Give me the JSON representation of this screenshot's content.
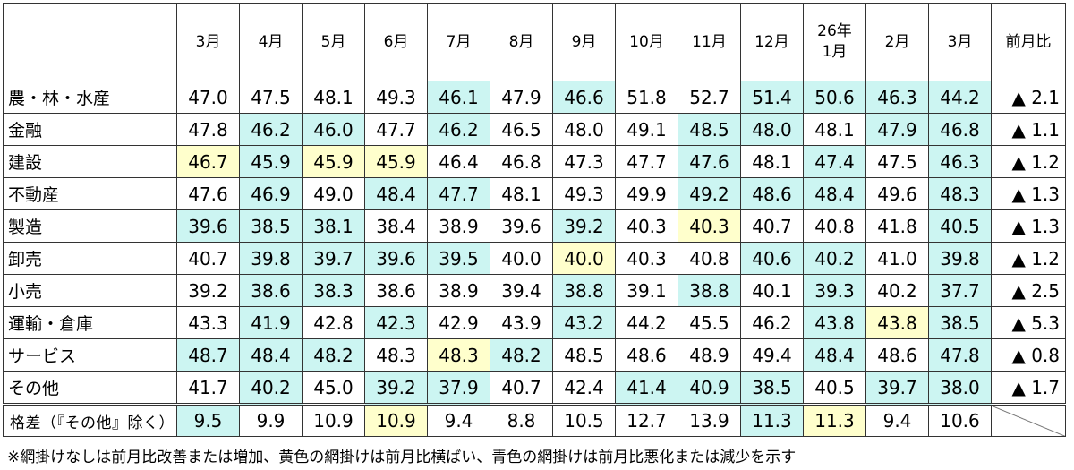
{
  "colors": {
    "blue": "#ccf5f2",
    "yellow": "#ffffcc"
  },
  "columns": [
    "3月",
    "4月",
    "5月",
    "6月",
    "7月",
    "8月",
    "9月",
    "10月",
    "11月",
    "12月",
    "26年\n1月",
    "2月",
    "3月",
    "前月比"
  ],
  "rows": [
    {
      "label": "農・林・水産",
      "values": [
        "47.0",
        "47.5",
        "48.1",
        "49.3",
        "46.1",
        "47.9",
        "46.6",
        "51.8",
        "52.7",
        "51.4",
        "50.6",
        "46.3",
        "44.2"
      ],
      "shade": [
        "",
        "",
        "",
        "",
        "b",
        "",
        "b",
        "",
        "",
        "b",
        "b",
        "b",
        "b"
      ],
      "change": "▲ 2.1"
    },
    {
      "label": "金融",
      "values": [
        "47.8",
        "46.2",
        "46.0",
        "47.7",
        "46.2",
        "46.5",
        "48.0",
        "49.1",
        "48.5",
        "48.0",
        "48.1",
        "47.9",
        "46.8"
      ],
      "shade": [
        "",
        "b",
        "b",
        "",
        "b",
        "",
        "",
        "",
        "b",
        "b",
        "",
        "b",
        "b"
      ],
      "change": "▲ 1.1"
    },
    {
      "label": "建設",
      "values": [
        "46.7",
        "45.9",
        "45.9",
        "45.9",
        "46.4",
        "46.8",
        "47.3",
        "47.7",
        "47.6",
        "48.1",
        "47.4",
        "47.5",
        "46.3"
      ],
      "shade": [
        "y",
        "b",
        "y",
        "y",
        "",
        "",
        "",
        "",
        "b",
        "",
        "b",
        "",
        "b"
      ],
      "change": "▲ 1.2"
    },
    {
      "label": "不動産",
      "values": [
        "47.6",
        "46.9",
        "49.0",
        "48.4",
        "47.7",
        "48.1",
        "49.3",
        "49.9",
        "49.2",
        "48.6",
        "48.4",
        "49.6",
        "48.3"
      ],
      "shade": [
        "",
        "b",
        "",
        "b",
        "b",
        "",
        "",
        "",
        "b",
        "b",
        "b",
        "",
        "b"
      ],
      "change": "▲ 1.3"
    },
    {
      "label": "製造",
      "values": [
        "39.6",
        "38.5",
        "38.1",
        "38.4",
        "38.9",
        "39.6",
        "39.2",
        "40.3",
        "40.3",
        "40.7",
        "40.8",
        "41.8",
        "40.5"
      ],
      "shade": [
        "b",
        "b",
        "b",
        "",
        "",
        "",
        "b",
        "",
        "y",
        "",
        "",
        "",
        "b"
      ],
      "change": "▲ 1.3"
    },
    {
      "label": "卸売",
      "values": [
        "40.7",
        "39.8",
        "39.7",
        "39.6",
        "39.5",
        "40.0",
        "40.0",
        "40.3",
        "40.8",
        "40.6",
        "40.2",
        "41.0",
        "39.8"
      ],
      "shade": [
        "",
        "b",
        "b",
        "b",
        "b",
        "",
        "y",
        "",
        "",
        "b",
        "b",
        "",
        "b"
      ],
      "change": "▲ 1.2"
    },
    {
      "label": "小売",
      "values": [
        "39.2",
        "38.6",
        "38.3",
        "38.6",
        "38.9",
        "39.4",
        "38.8",
        "39.1",
        "38.8",
        "40.1",
        "39.3",
        "40.2",
        "37.7"
      ],
      "shade": [
        "",
        "b",
        "b",
        "",
        "",
        "",
        "b",
        "",
        "b",
        "",
        "b",
        "",
        "b"
      ],
      "change": "▲ 2.5"
    },
    {
      "label": "運輸・倉庫",
      "values": [
        "43.3",
        "41.9",
        "42.8",
        "42.3",
        "42.9",
        "43.9",
        "43.2",
        "44.2",
        "45.5",
        "46.2",
        "43.8",
        "43.8",
        "38.5"
      ],
      "shade": [
        "",
        "b",
        "",
        "b",
        "",
        "",
        "b",
        "",
        "",
        "",
        "b",
        "y",
        "b"
      ],
      "change": "▲ 5.3"
    },
    {
      "label": "サービス",
      "values": [
        "48.7",
        "48.4",
        "48.2",
        "48.3",
        "48.3",
        "48.2",
        "48.5",
        "48.6",
        "48.9",
        "49.4",
        "48.4",
        "48.6",
        "47.8"
      ],
      "shade": [
        "b",
        "b",
        "b",
        "",
        "y",
        "b",
        "",
        "",
        "",
        "",
        "b",
        "",
        "b"
      ],
      "change": "▲ 0.8"
    },
    {
      "label": "その他",
      "values": [
        "41.7",
        "40.2",
        "45.0",
        "39.2",
        "37.9",
        "40.7",
        "42.4",
        "41.4",
        "40.9",
        "38.5",
        "40.5",
        "39.7",
        "38.0"
      ],
      "shade": [
        "",
        "b",
        "",
        "b",
        "b",
        "",
        "",
        "b",
        "b",
        "b",
        "",
        "b",
        "b"
      ],
      "change": "▲ 1.7"
    }
  ],
  "gap_row": {
    "label": "格差（『その他』除く）",
    "values": [
      "9.5",
      "9.9",
      "10.9",
      "10.9",
      "9.4",
      "8.8",
      "10.5",
      "12.7",
      "13.9",
      "11.3",
      "11.3",
      "9.4",
      "10.6"
    ],
    "shade": [
      "b",
      "",
      "",
      "y",
      "",
      "",
      "",
      "",
      "",
      "b",
      "y",
      "",
      ""
    ]
  },
  "note": "※網掛けなしは前月比改善または増加、黄色の網掛けは前月比横ばい、青色の網掛けは前月比悪化または減少を示す"
}
